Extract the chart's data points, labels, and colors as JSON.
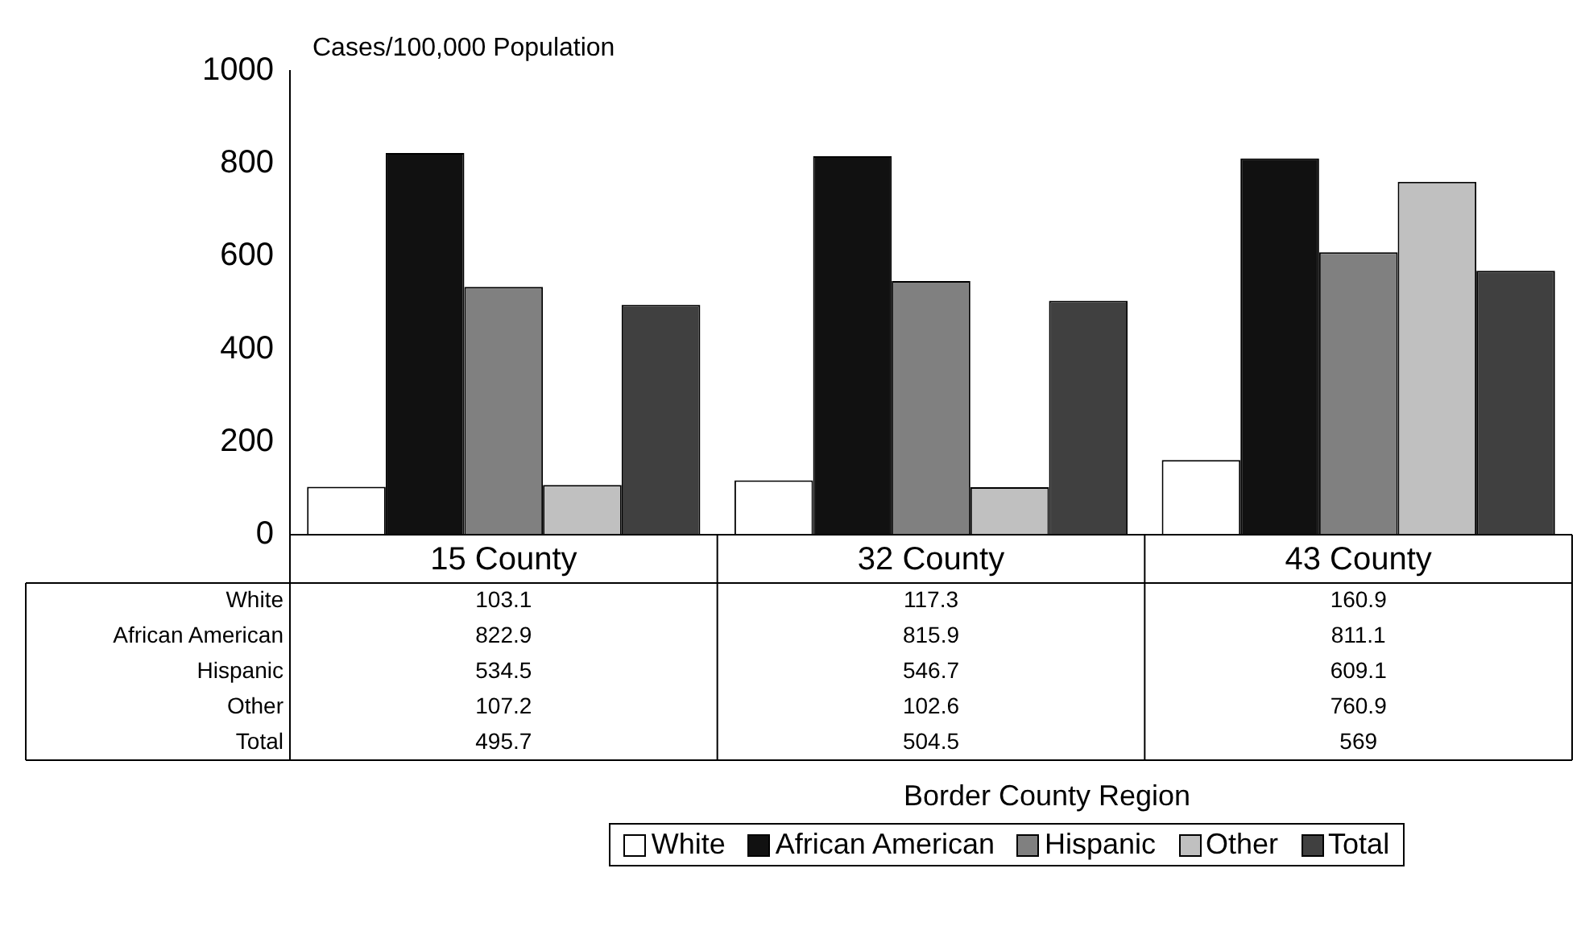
{
  "chart_data": {
    "type": "bar",
    "ylabel": "Cases/100,000 Population",
    "annotations": [
      "Border County Region"
    ],
    "categories": [
      "15 County",
      "32 County",
      "43 County"
    ],
    "series": [
      {
        "name": "White",
        "color": "#ffffff",
        "values": [
          103.1,
          117.3,
          160.9
        ]
      },
      {
        "name": "African American",
        "color": "#111111",
        "values": [
          822.9,
          815.9,
          811.1
        ]
      },
      {
        "name": "Hispanic",
        "color": "#808080",
        "values": [
          534.5,
          546.7,
          609.1
        ]
      },
      {
        "name": "Other",
        "color": "#c0c0c0",
        "values": [
          107.2,
          102.6,
          760.9
        ]
      },
      {
        "name": "Total",
        "color": "#404040",
        "values": [
          495.7,
          504.5,
          569
        ]
      }
    ],
    "value_labels": [
      [
        "103.1",
        "117.3",
        "160.9"
      ],
      [
        "822.9",
        "815.9",
        "811.1"
      ],
      [
        "534.5",
        "546.7",
        "609.1"
      ],
      [
        "107.2",
        "102.6",
        "760.9"
      ],
      [
        "495.7",
        "504.5",
        "569"
      ]
    ],
    "ylim": [
      0,
      1000
    ],
    "yticks": [
      0,
      200,
      400,
      600,
      800,
      1000
    ],
    "grid": false,
    "legend": "bottom"
  }
}
